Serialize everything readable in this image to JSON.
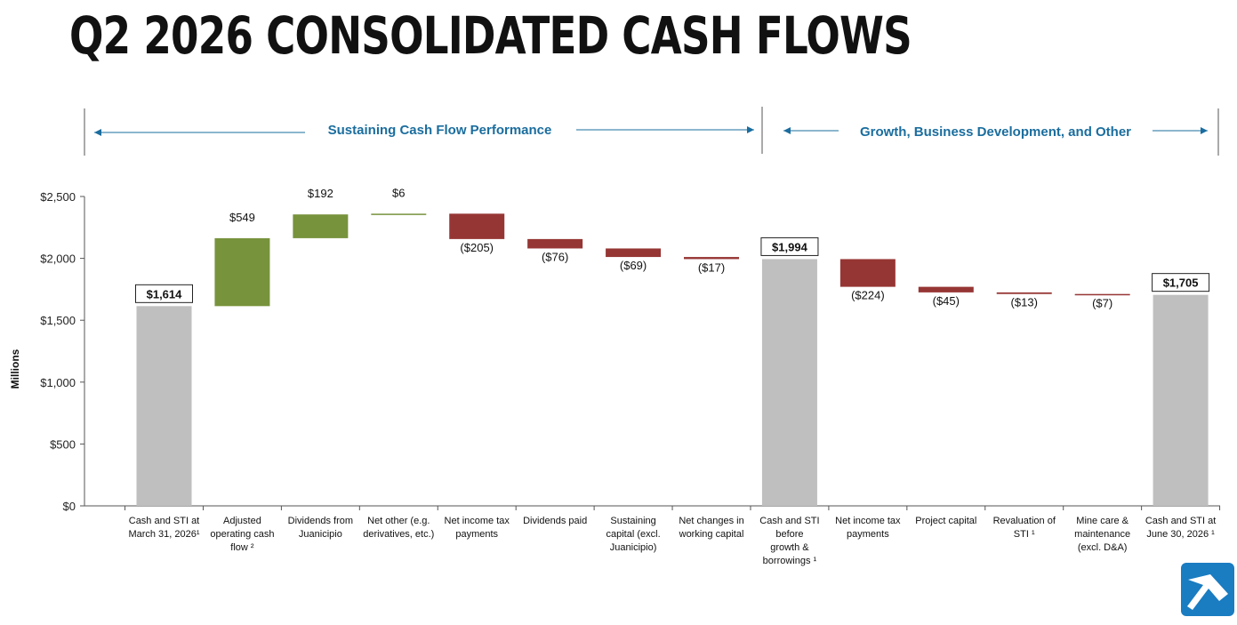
{
  "title": "Q2 2026 CONSOLIDATED CASH FLOWS",
  "logo_icon": "pickaxe-logo-icon",
  "colors": {
    "increase": "#77933c",
    "decrease": "#963634",
    "total": "#bfbfbf",
    "accent": "#1a6d9e"
  },
  "chart_data": {
    "type": "bar",
    "subtype": "waterfall",
    "ylabel": "Millions",
    "ylim": [
      0,
      2500
    ],
    "yticks": [
      0,
      500,
      1000,
      1500,
      2000,
      2500
    ],
    "ytick_labels": [
      "$0",
      "$500",
      "$1,000",
      "$1,500",
      "$2,000",
      "$2,500"
    ],
    "grid": false,
    "sections": [
      {
        "label": "Sustaining Cash Flow Performance"
      },
      {
        "label": "Growth, Business Development, and Other"
      }
    ],
    "bars": [
      {
        "category": [
          "Cash and STI at",
          "March 31, 2026¹"
        ],
        "kind": "total",
        "value": 1614,
        "label": "$1,614"
      },
      {
        "category": [
          "Adjusted",
          "operating cash",
          "flow ²"
        ],
        "kind": "increase",
        "value": 549,
        "label": "$549"
      },
      {
        "category": [
          "Dividends from",
          "Juanicipio"
        ],
        "kind": "increase",
        "value": 192,
        "label": "$192"
      },
      {
        "category": [
          "Net other (e.g.",
          "derivatives, etc.)"
        ],
        "kind": "increase",
        "value": 6,
        "label": "$6"
      },
      {
        "category": [
          "Net income tax",
          "payments"
        ],
        "kind": "decrease",
        "value": -205,
        "label": "($205)"
      },
      {
        "category": [
          "Dividends paid"
        ],
        "kind": "decrease",
        "value": -76,
        "label": "($76)"
      },
      {
        "category": [
          "Sustaining",
          "capital (excl.",
          "Juanicipio)"
        ],
        "kind": "decrease",
        "value": -69,
        "label": "($69)"
      },
      {
        "category": [
          "Net changes in",
          "working capital"
        ],
        "kind": "decrease",
        "value": -17,
        "label": "($17)"
      },
      {
        "category": [
          "Cash and STI",
          "before",
          "growth &",
          "borrowings ¹"
        ],
        "kind": "total",
        "value": 1994,
        "label": "$1,994"
      },
      {
        "category": [
          "Net income tax",
          "payments"
        ],
        "kind": "decrease",
        "value": -224,
        "label": "($224)"
      },
      {
        "category": [
          "Project capital"
        ],
        "kind": "decrease",
        "value": -45,
        "label": "($45)"
      },
      {
        "category": [
          "Revaluation of",
          "STI ¹"
        ],
        "kind": "decrease",
        "value": -13,
        "label": "($13)"
      },
      {
        "category": [
          "Mine care &",
          "maintenance",
          "(excl. D&A)"
        ],
        "kind": "decrease",
        "value": -7,
        "label": "($7)"
      },
      {
        "category": [
          "Cash and STI at",
          "June 30, 2026 ¹"
        ],
        "kind": "total",
        "value": 1705,
        "label": "$1,705"
      }
    ]
  }
}
